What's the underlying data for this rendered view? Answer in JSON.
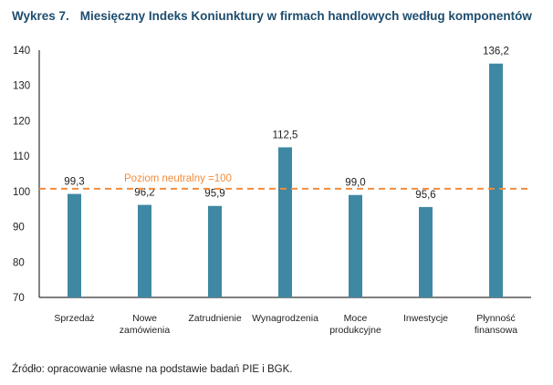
{
  "chart_data": {
    "type": "bar",
    "title_number": "Wykres 7.",
    "title": "Miesięczny Indeks Koniunktury w firmach handlowych według komponentów",
    "categories": [
      [
        "Sprzedaż"
      ],
      [
        "Nowe",
        "zamówienia"
      ],
      [
        "Zatrudnienie"
      ],
      [
        "Wynagrodzenia"
      ],
      [
        "Moce",
        "produkcyjne"
      ],
      [
        "Inwestycje"
      ],
      [
        "Płynność",
        "finansowa"
      ]
    ],
    "values": [
      99.3,
      96.2,
      95.9,
      112.5,
      99.0,
      95.6,
      136.2
    ],
    "value_labels": [
      "99,3",
      "96,2",
      "95,9",
      "112,5",
      "99,0",
      "95,6",
      "136,2"
    ],
    "ylim": [
      70,
      140
    ],
    "yticks": [
      70,
      80,
      90,
      100,
      110,
      120,
      130,
      140
    ],
    "reference_line": {
      "value": 100,
      "label": "Poziom neutralny =100"
    },
    "grid": false,
    "colors": {
      "bar": "#3f88a3",
      "reference": "#f28c3c",
      "title": "#1d4d6e"
    }
  },
  "source": "Źródło: opracowanie własne na podstawie badań PIE i BGK."
}
